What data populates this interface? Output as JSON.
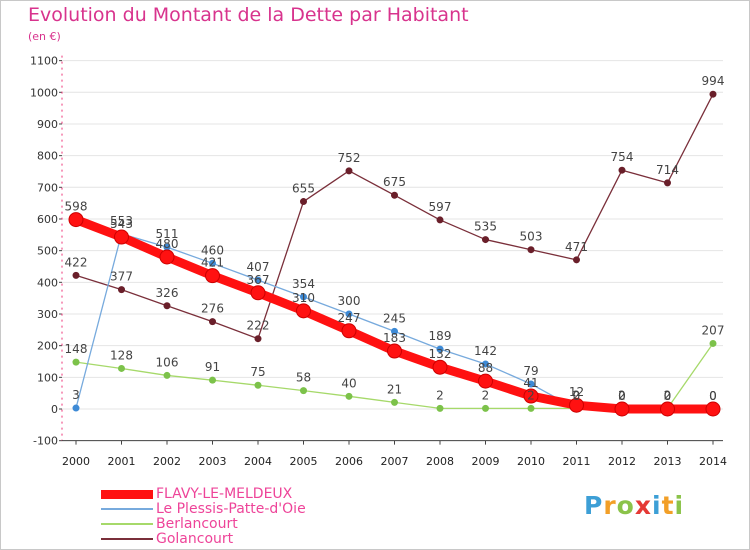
{
  "title": "Evolution du Montant de la Dette par Habitant",
  "unit": "(en €)",
  "colors": {
    "title": "#d8338d",
    "axis": "#444444",
    "grid": "#e4e4e4"
  },
  "logo": {
    "letters": [
      "P",
      "r",
      "o",
      "x",
      "i",
      "t",
      "i"
    ],
    "colors": [
      "#3d9fd6",
      "#f29f27",
      "#8bc34a",
      "#e53935",
      "#3d9fd6",
      "#f29f27",
      "#8bc34a"
    ]
  },
  "chart_data": {
    "type": "line",
    "x": [
      2000,
      2001,
      2002,
      2003,
      2004,
      2005,
      2006,
      2007,
      2008,
      2009,
      2010,
      2011,
      2012,
      2013,
      2014
    ],
    "ylim": [
      -100,
      1100
    ],
    "yticks": [
      -100,
      0,
      100,
      200,
      300,
      400,
      500,
      600,
      700,
      800,
      900,
      1000,
      1100
    ],
    "grid": true,
    "legend_position": "bottom",
    "series": [
      {
        "name": "FLAVY-LE-MELDEUX",
        "color": "#ff1111",
        "stroke": 9,
        "point": 7,
        "values": [
          598,
          543,
          480,
          421,
          367,
          310,
          247,
          183,
          132,
          88,
          41,
          12,
          0,
          0,
          0
        ],
        "labels": [
          "598",
          "543",
          "480",
          "421",
          "367",
          "310",
          "247",
          "183",
          "132",
          "88",
          "41",
          "12",
          "0",
          "0",
          "0"
        ]
      },
      {
        "name": "Le Plessis-Patte-d'Oie",
        "color": "#77aadd",
        "point_color": "#3d8ad6",
        "stroke": 1.3,
        "point": 3.5,
        "values": [
          3,
          553,
          511,
          460,
          407,
          354,
          300,
          245,
          189,
          142,
          79,
          0,
          0,
          0,
          0
        ],
        "labels": [
          "3",
          "553",
          "511",
          "460",
          "407",
          "354",
          "300",
          "245",
          "189",
          "142",
          "79",
          "0",
          "0",
          "0",
          "0"
        ]
      },
      {
        "name": "Berlancourt",
        "color": "#a6d96a",
        "point_color": "#7cc24a",
        "stroke": 1.3,
        "point": 3.5,
        "values": [
          148,
          128,
          106,
          91,
          75,
          58,
          40,
          21,
          2,
          2,
          2,
          2,
          2,
          2,
          207
        ],
        "labels": [
          "148",
          "128",
          "106",
          "91",
          "75",
          "58",
          "40",
          "21",
          "2",
          "2",
          "2",
          "2",
          "2",
          "2",
          "207"
        ]
      },
      {
        "name": "Golancourt",
        "color": "#7a2f3a",
        "point_color": "#6a1f2a",
        "stroke": 1.3,
        "point": 3.5,
        "segments": [
          [
            0,
            4
          ],
          [
            4,
            14
          ]
        ],
        "values": [
          422,
          377,
          326,
          276,
          222,
          655,
          752,
          675,
          597,
          535,
          503,
          471,
          754,
          714,
          994
        ],
        "labels": [
          "422",
          "377",
          "326",
          "276",
          "222",
          "655",
          "752",
          "675",
          "597",
          "535",
          "503",
          "471",
          "754",
          "714",
          "994"
        ]
      }
    ]
  }
}
